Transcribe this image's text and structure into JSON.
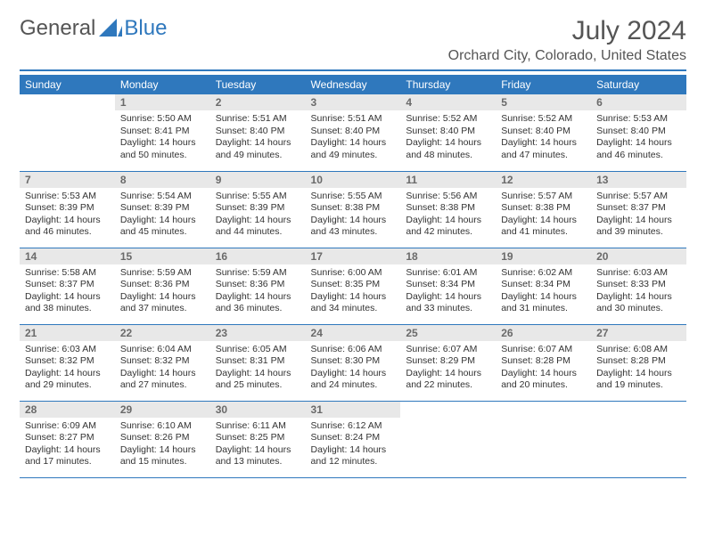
{
  "logo": {
    "text_general": "General",
    "text_blue": "Blue"
  },
  "title": "July 2024",
  "location": "Orchard City, Colorado, United States",
  "header_bg": "#2f78bd",
  "daynum_bg": "#e8e8e8",
  "weekdays": [
    "Sunday",
    "Monday",
    "Tuesday",
    "Wednesday",
    "Thursday",
    "Friday",
    "Saturday"
  ],
  "weeks": [
    [
      {
        "day": "",
        "sunrise": "",
        "sunset": "",
        "daylight1": "",
        "daylight2": ""
      },
      {
        "day": "1",
        "sunrise": "Sunrise: 5:50 AM",
        "sunset": "Sunset: 8:41 PM",
        "daylight1": "Daylight: 14 hours",
        "daylight2": "and 50 minutes."
      },
      {
        "day": "2",
        "sunrise": "Sunrise: 5:51 AM",
        "sunset": "Sunset: 8:40 PM",
        "daylight1": "Daylight: 14 hours",
        "daylight2": "and 49 minutes."
      },
      {
        "day": "3",
        "sunrise": "Sunrise: 5:51 AM",
        "sunset": "Sunset: 8:40 PM",
        "daylight1": "Daylight: 14 hours",
        "daylight2": "and 49 minutes."
      },
      {
        "day": "4",
        "sunrise": "Sunrise: 5:52 AM",
        "sunset": "Sunset: 8:40 PM",
        "daylight1": "Daylight: 14 hours",
        "daylight2": "and 48 minutes."
      },
      {
        "day": "5",
        "sunrise": "Sunrise: 5:52 AM",
        "sunset": "Sunset: 8:40 PM",
        "daylight1": "Daylight: 14 hours",
        "daylight2": "and 47 minutes."
      },
      {
        "day": "6",
        "sunrise": "Sunrise: 5:53 AM",
        "sunset": "Sunset: 8:40 PM",
        "daylight1": "Daylight: 14 hours",
        "daylight2": "and 46 minutes."
      }
    ],
    [
      {
        "day": "7",
        "sunrise": "Sunrise: 5:53 AM",
        "sunset": "Sunset: 8:39 PM",
        "daylight1": "Daylight: 14 hours",
        "daylight2": "and 46 minutes."
      },
      {
        "day": "8",
        "sunrise": "Sunrise: 5:54 AM",
        "sunset": "Sunset: 8:39 PM",
        "daylight1": "Daylight: 14 hours",
        "daylight2": "and 45 minutes."
      },
      {
        "day": "9",
        "sunrise": "Sunrise: 5:55 AM",
        "sunset": "Sunset: 8:39 PM",
        "daylight1": "Daylight: 14 hours",
        "daylight2": "and 44 minutes."
      },
      {
        "day": "10",
        "sunrise": "Sunrise: 5:55 AM",
        "sunset": "Sunset: 8:38 PM",
        "daylight1": "Daylight: 14 hours",
        "daylight2": "and 43 minutes."
      },
      {
        "day": "11",
        "sunrise": "Sunrise: 5:56 AM",
        "sunset": "Sunset: 8:38 PM",
        "daylight1": "Daylight: 14 hours",
        "daylight2": "and 42 minutes."
      },
      {
        "day": "12",
        "sunrise": "Sunrise: 5:57 AM",
        "sunset": "Sunset: 8:38 PM",
        "daylight1": "Daylight: 14 hours",
        "daylight2": "and 41 minutes."
      },
      {
        "day": "13",
        "sunrise": "Sunrise: 5:57 AM",
        "sunset": "Sunset: 8:37 PM",
        "daylight1": "Daylight: 14 hours",
        "daylight2": "and 39 minutes."
      }
    ],
    [
      {
        "day": "14",
        "sunrise": "Sunrise: 5:58 AM",
        "sunset": "Sunset: 8:37 PM",
        "daylight1": "Daylight: 14 hours",
        "daylight2": "and 38 minutes."
      },
      {
        "day": "15",
        "sunrise": "Sunrise: 5:59 AM",
        "sunset": "Sunset: 8:36 PM",
        "daylight1": "Daylight: 14 hours",
        "daylight2": "and 37 minutes."
      },
      {
        "day": "16",
        "sunrise": "Sunrise: 5:59 AM",
        "sunset": "Sunset: 8:36 PM",
        "daylight1": "Daylight: 14 hours",
        "daylight2": "and 36 minutes."
      },
      {
        "day": "17",
        "sunrise": "Sunrise: 6:00 AM",
        "sunset": "Sunset: 8:35 PM",
        "daylight1": "Daylight: 14 hours",
        "daylight2": "and 34 minutes."
      },
      {
        "day": "18",
        "sunrise": "Sunrise: 6:01 AM",
        "sunset": "Sunset: 8:34 PM",
        "daylight1": "Daylight: 14 hours",
        "daylight2": "and 33 minutes."
      },
      {
        "day": "19",
        "sunrise": "Sunrise: 6:02 AM",
        "sunset": "Sunset: 8:34 PM",
        "daylight1": "Daylight: 14 hours",
        "daylight2": "and 31 minutes."
      },
      {
        "day": "20",
        "sunrise": "Sunrise: 6:03 AM",
        "sunset": "Sunset: 8:33 PM",
        "daylight1": "Daylight: 14 hours",
        "daylight2": "and 30 minutes."
      }
    ],
    [
      {
        "day": "21",
        "sunrise": "Sunrise: 6:03 AM",
        "sunset": "Sunset: 8:32 PM",
        "daylight1": "Daylight: 14 hours",
        "daylight2": "and 29 minutes."
      },
      {
        "day": "22",
        "sunrise": "Sunrise: 6:04 AM",
        "sunset": "Sunset: 8:32 PM",
        "daylight1": "Daylight: 14 hours",
        "daylight2": "and 27 minutes."
      },
      {
        "day": "23",
        "sunrise": "Sunrise: 6:05 AM",
        "sunset": "Sunset: 8:31 PM",
        "daylight1": "Daylight: 14 hours",
        "daylight2": "and 25 minutes."
      },
      {
        "day": "24",
        "sunrise": "Sunrise: 6:06 AM",
        "sunset": "Sunset: 8:30 PM",
        "daylight1": "Daylight: 14 hours",
        "daylight2": "and 24 minutes."
      },
      {
        "day": "25",
        "sunrise": "Sunrise: 6:07 AM",
        "sunset": "Sunset: 8:29 PM",
        "daylight1": "Daylight: 14 hours",
        "daylight2": "and 22 minutes."
      },
      {
        "day": "26",
        "sunrise": "Sunrise: 6:07 AM",
        "sunset": "Sunset: 8:28 PM",
        "daylight1": "Daylight: 14 hours",
        "daylight2": "and 20 minutes."
      },
      {
        "day": "27",
        "sunrise": "Sunrise: 6:08 AM",
        "sunset": "Sunset: 8:28 PM",
        "daylight1": "Daylight: 14 hours",
        "daylight2": "and 19 minutes."
      }
    ],
    [
      {
        "day": "28",
        "sunrise": "Sunrise: 6:09 AM",
        "sunset": "Sunset: 8:27 PM",
        "daylight1": "Daylight: 14 hours",
        "daylight2": "and 17 minutes."
      },
      {
        "day": "29",
        "sunrise": "Sunrise: 6:10 AM",
        "sunset": "Sunset: 8:26 PM",
        "daylight1": "Daylight: 14 hours",
        "daylight2": "and 15 minutes."
      },
      {
        "day": "30",
        "sunrise": "Sunrise: 6:11 AM",
        "sunset": "Sunset: 8:25 PM",
        "daylight1": "Daylight: 14 hours",
        "daylight2": "and 13 minutes."
      },
      {
        "day": "31",
        "sunrise": "Sunrise: 6:12 AM",
        "sunset": "Sunset: 8:24 PM",
        "daylight1": "Daylight: 14 hours",
        "daylight2": "and 12 minutes."
      },
      {
        "day": "",
        "sunrise": "",
        "sunset": "",
        "daylight1": "",
        "daylight2": ""
      },
      {
        "day": "",
        "sunrise": "",
        "sunset": "",
        "daylight1": "",
        "daylight2": ""
      },
      {
        "day": "",
        "sunrise": "",
        "sunset": "",
        "daylight1": "",
        "daylight2": ""
      }
    ]
  ]
}
